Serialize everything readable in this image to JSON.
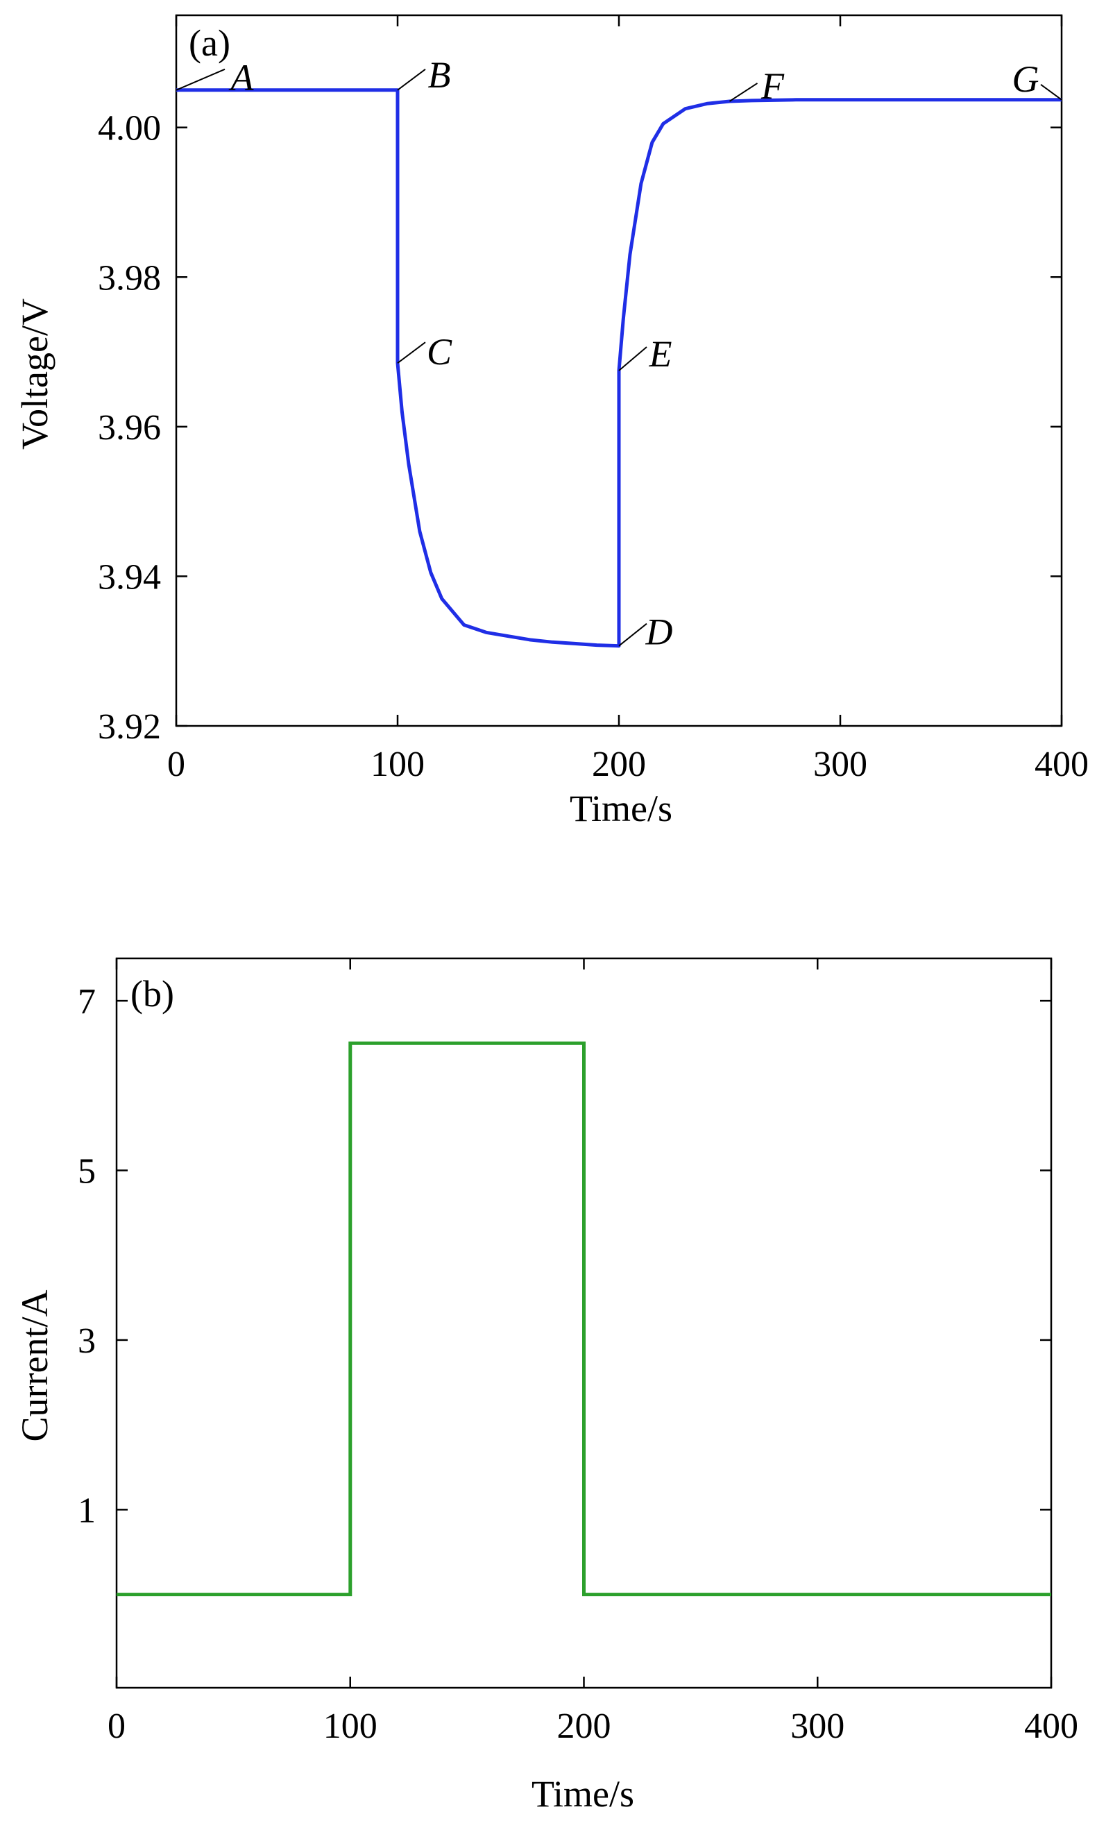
{
  "chart_data": [
    {
      "type": "line",
      "panel_label": "(a)",
      "xlabel": "Time/s",
      "ylabel": "Voltage/V",
      "xlim": [
        0,
        400
      ],
      "ylim": [
        3.92,
        4.015
      ],
      "xticks": [
        0,
        100,
        200,
        300,
        400
      ],
      "xtick_labels": [
        "0",
        "100",
        "200",
        "300",
        "400"
      ],
      "yticks": [
        3.92,
        3.94,
        3.96,
        3.98,
        4.0
      ],
      "ytick_labels": [
        "3.92",
        "3.94",
        "3.96",
        "3.98",
        "4.00"
      ],
      "grid": false,
      "color": "#1f2ee6",
      "series": [
        {
          "x": [
            0,
            100,
            100,
            102,
            105,
            110,
            115,
            120,
            130,
            140,
            150,
            160,
            170,
            180,
            190,
            200,
            200,
            202,
            205,
            210,
            215,
            220,
            230,
            240,
            250,
            260,
            280,
            300,
            350,
            400
          ],
          "y": [
            4.005,
            4.005,
            3.9685,
            3.962,
            3.955,
            3.946,
            3.9405,
            3.937,
            3.9335,
            3.9325,
            3.932,
            3.9315,
            3.9312,
            3.931,
            3.9308,
            3.9307,
            3.9675,
            3.9745,
            3.983,
            3.9925,
            3.998,
            4.0005,
            4.0025,
            4.0032,
            4.0035,
            4.0036,
            4.0037,
            4.0037,
            4.0037,
            4.0037
          ]
        }
      ],
      "annotations": [
        {
          "text": "A",
          "x": 0,
          "y": 4.005
        },
        {
          "text": "B",
          "x": 100,
          "y": 4.005
        },
        {
          "text": "C",
          "x": 100,
          "y": 3.9685
        },
        {
          "text": "D",
          "x": 200,
          "y": 3.9307
        },
        {
          "text": "E",
          "x": 200,
          "y": 3.9675
        },
        {
          "text": "F",
          "x": 250,
          "y": 4.0035
        },
        {
          "text": "G",
          "x": 400,
          "y": 4.0037
        }
      ]
    },
    {
      "type": "line",
      "panel_label": "(b)",
      "xlabel": "Time/s",
      "ylabel": "Current/A",
      "xlim": [
        0,
        400
      ],
      "ylim": [
        -1.1,
        7.5
      ],
      "xticks": [
        0,
        100,
        200,
        300,
        400
      ],
      "xtick_labels": [
        "0",
        "100",
        "200",
        "300",
        "400"
      ],
      "yticks": [
        1,
        3,
        5,
        7
      ],
      "ytick_labels": [
        "1",
        "3",
        "5",
        "7"
      ],
      "grid": false,
      "color": "#2ca02c",
      "series": [
        {
          "x": [
            0,
            100,
            100,
            200,
            200,
            400
          ],
          "y": [
            0,
            0,
            6.5,
            6.5,
            0,
            0
          ]
        }
      ]
    }
  ]
}
